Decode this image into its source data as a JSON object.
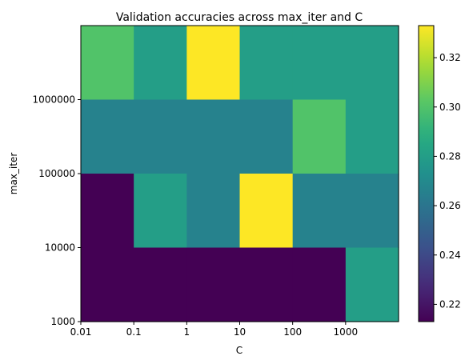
{
  "chart_data": {
    "type": "heatmap",
    "title": "Validation accuracies across max_iter and C",
    "xlabel": "C",
    "ylabel": "max_iter",
    "x_tick_labels": [
      "0.01",
      "0.1",
      "1",
      "10",
      "100",
      "1000"
    ],
    "y_tick_labels": [
      "1000",
      "10000",
      "100000",
      "1000000"
    ],
    "rows_top_to_bottom": [
      [
        0.3,
        0.28,
        0.333,
        0.28,
        0.28,
        0.28
      ],
      [
        0.266,
        0.266,
        0.266,
        0.266,
        0.3,
        0.28
      ],
      [
        0.213,
        0.28,
        0.266,
        0.333,
        0.266,
        0.266
      ],
      [
        0.213,
        0.213,
        0.213,
        0.213,
        0.213,
        0.28
      ]
    ],
    "colorbar": {
      "min": 0.213,
      "max": 0.333,
      "ticks": [
        0.22,
        0.24,
        0.26,
        0.28,
        0.3,
        0.32
      ],
      "tick_labels": [
        "0.22",
        "0.24",
        "0.26",
        "0.28",
        "0.30",
        "0.32"
      ]
    },
    "colormap": "viridis",
    "grid": false,
    "legend": "colorbar-right"
  }
}
